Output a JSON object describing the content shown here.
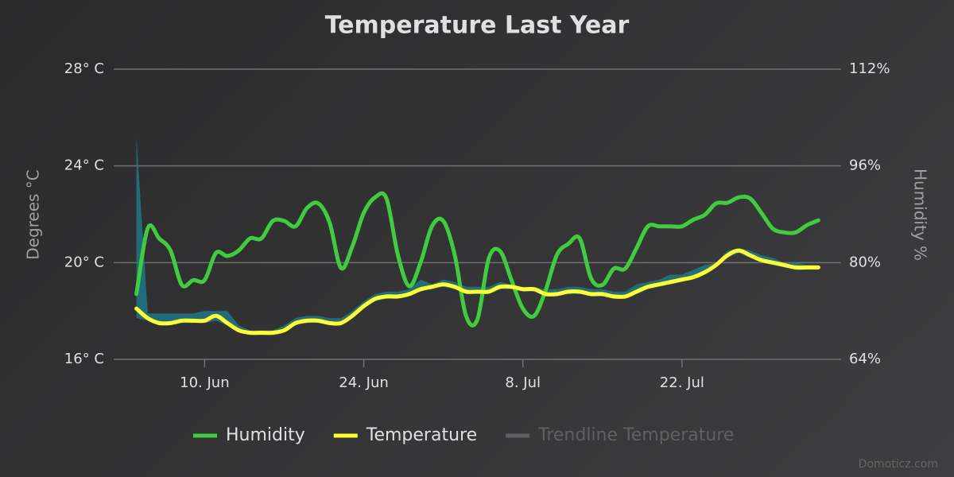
{
  "chart_data": {
    "type": "line",
    "title": "Temperature Last Year",
    "y_label": "Degrees °C",
    "y2_label": "Humidity %",
    "credit": "Domoticz.com",
    "x": [
      "06-04",
      "06-05",
      "06-06",
      "06-07",
      "06-08",
      "06-09",
      "06-10",
      "06-11",
      "06-12",
      "06-13",
      "06-14",
      "06-15",
      "06-16",
      "06-17",
      "06-18",
      "06-19",
      "06-20",
      "06-21",
      "06-22",
      "06-23",
      "06-24",
      "06-25",
      "06-26",
      "06-27",
      "06-28",
      "06-29",
      "06-30",
      "07-01",
      "07-02",
      "07-03",
      "07-04",
      "07-05",
      "07-06",
      "07-07",
      "07-08",
      "07-09",
      "07-10",
      "07-11",
      "07-12",
      "07-13",
      "07-14",
      "07-15",
      "07-16",
      "07-17",
      "07-18",
      "07-19",
      "07-20",
      "07-21",
      "07-22",
      "07-23",
      "07-24",
      "07-25",
      "07-26",
      "07-27",
      "07-28",
      "07-29",
      "07-30",
      "07-31",
      "08-01",
      "08-02",
      "08-03"
    ],
    "xlim": [
      "06-02",
      "08-05"
    ],
    "xticks": [
      {
        "value": "06-10",
        "label": "10. Jun"
      },
      {
        "value": "06-24",
        "label": "24. Jun"
      },
      {
        "value": "07-08",
        "label": "8. Jul"
      },
      {
        "value": "07-22",
        "label": "22. Jul"
      }
    ],
    "ylim": [
      16,
      28
    ],
    "yticks": [
      {
        "value": 16,
        "label": "16° C"
      },
      {
        "value": 20,
        "label": "20° C"
      },
      {
        "value": 24,
        "label": "24° C"
      },
      {
        "value": 28,
        "label": "28° C"
      }
    ],
    "y2lim": [
      64,
      112
    ],
    "y2ticks": [
      {
        "value": 64,
        "label": "64%"
      },
      {
        "value": 80,
        "label": "80%"
      },
      {
        "value": 96,
        "label": "96%"
      },
      {
        "value": 112,
        "label": "112%"
      }
    ],
    "grid": true,
    "temperature_range": {
      "color": "#1f7a8c",
      "low": [
        17.7,
        17.6,
        17.4,
        17.4,
        17.5,
        17.5,
        17.5,
        17.6,
        17.4,
        17.1,
        17.0,
        17.0,
        17.0,
        17.1,
        17.4,
        17.5,
        17.5,
        17.4,
        17.4,
        17.7,
        18.1,
        18.4,
        18.5,
        18.5,
        18.6,
        18.8,
        18.9,
        19.0,
        18.9,
        18.7,
        18.7,
        18.7,
        18.9,
        18.9,
        18.8,
        18.8,
        18.6,
        18.6,
        18.7,
        18.7,
        18.6,
        18.6,
        18.5,
        18.5,
        18.7,
        18.9,
        19.0,
        19.1,
        19.2,
        19.3,
        19.5,
        19.8,
        20.2,
        20.4,
        20.2,
        20.0,
        19.9,
        19.8,
        19.7,
        19.7,
        19.7
      ],
      "high": [
        25.2,
        17.9,
        17.9,
        17.9,
        17.9,
        17.9,
        18.0,
        18.0,
        18.0,
        17.4,
        17.2,
        17.2,
        17.2,
        17.4,
        17.7,
        17.8,
        17.8,
        17.7,
        17.7,
        18.0,
        18.4,
        18.7,
        18.8,
        18.8,
        18.9,
        19.3,
        19.1,
        19.3,
        19.2,
        19.0,
        19.0,
        19.0,
        19.2,
        19.1,
        19.0,
        19.0,
        18.9,
        18.9,
        19.0,
        19.0,
        18.9,
        18.9,
        18.8,
        18.8,
        19.1,
        19.2,
        19.3,
        19.5,
        19.5,
        19.7,
        19.9,
        20.0,
        20.5,
        20.6,
        20.5,
        20.3,
        20.2,
        20.0,
        20.0,
        19.9,
        19.9
      ]
    },
    "series": [
      {
        "name": "Humidity",
        "color": "#3fcc3f",
        "axis": "y2",
        "values": [
          74.8,
          85.7,
          84,
          82,
          76.3,
          77.1,
          77.1,
          81.6,
          81.1,
          82,
          84,
          84,
          86.9,
          86.9,
          86,
          89,
          89.8,
          86.6,
          79.1,
          82.7,
          88.2,
          90.8,
          90.6,
          81.3,
          76.1,
          80,
          86,
          86.9,
          81.3,
          71.2,
          70.6,
          80.7,
          81.9,
          77.1,
          72.4,
          71.2,
          75.4,
          81.3,
          83.1,
          84,
          77.4,
          76.3,
          79,
          79,
          82.4,
          86,
          86,
          86,
          86,
          87.1,
          87.9,
          89.8,
          89.9,
          90.8,
          90.6,
          88.2,
          85.6,
          85,
          85,
          86.2,
          87
        ]
      },
      {
        "name": "Temperature",
        "color": "#ffff33",
        "axis": "y",
        "values": [
          18.1,
          17.7,
          17.5,
          17.5,
          17.6,
          17.6,
          17.6,
          17.8,
          17.5,
          17.2,
          17.1,
          17.1,
          17.1,
          17.2,
          17.5,
          17.6,
          17.6,
          17.5,
          17.5,
          17.8,
          18.2,
          18.5,
          18.6,
          18.6,
          18.7,
          18.9,
          19.0,
          19.1,
          19.0,
          18.8,
          18.8,
          18.8,
          19.0,
          19.0,
          18.9,
          18.9,
          18.7,
          18.7,
          18.8,
          18.8,
          18.7,
          18.7,
          18.6,
          18.6,
          18.8,
          19.0,
          19.1,
          19.2,
          19.3,
          19.4,
          19.6,
          19.9,
          20.3,
          20.5,
          20.3,
          20.1,
          20.0,
          19.9,
          19.8,
          19.8,
          19.8
        ]
      },
      {
        "name": "Trendline Temperature",
        "color": "#666666",
        "hidden": true
      }
    ]
  }
}
